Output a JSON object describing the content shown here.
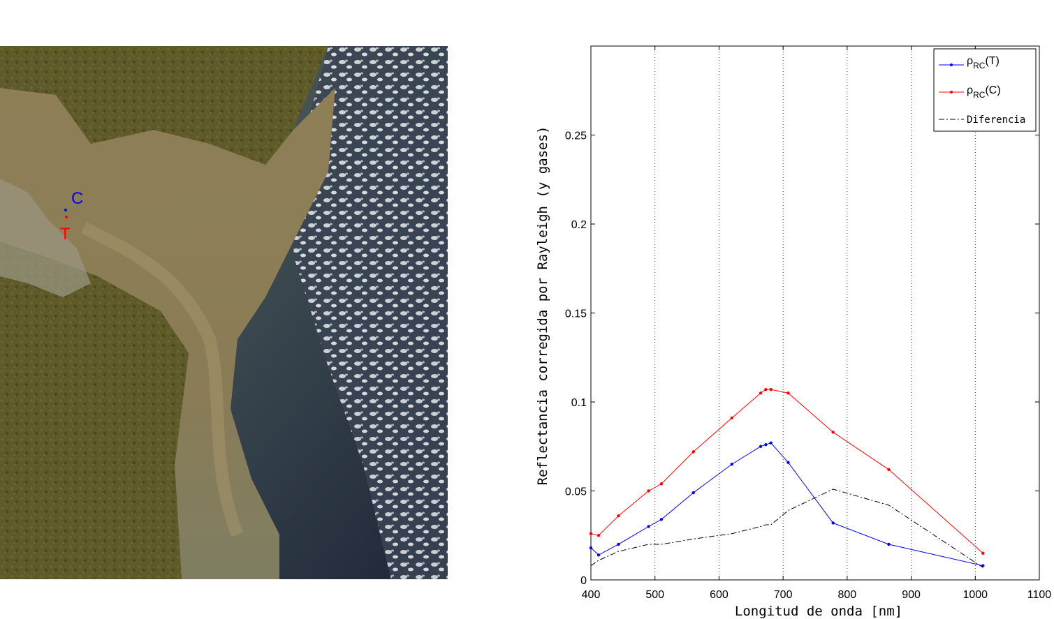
{
  "image_panel": {
    "markers": [
      {
        "label": "C",
        "color": "#0000ff"
      },
      {
        "label": "T",
        "color": "#ff0000"
      }
    ]
  },
  "chart_data": {
    "type": "line",
    "xlabel": "Longitud de onda [nm]",
    "ylabel": "Reflectancia corregida por Rayleigh (y gases)",
    "xlim": [
      400,
      1100
    ],
    "ylim": [
      0,
      0.3
    ],
    "xticks": [
      400,
      500,
      600,
      700,
      800,
      900,
      1000,
      1100
    ],
    "yticks": [
      0,
      0.05,
      0.1,
      0.15,
      0.2,
      0.25
    ],
    "ytick_labels": [
      "0",
      "0.05",
      "0.1",
      "0.15",
      "0.2",
      "0.25"
    ],
    "grid": "vertical dotted",
    "legend_position": "top-right",
    "series": [
      {
        "key": "T",
        "legend_base": "ρ",
        "legend_sub": "RC",
        "legend_suffix": "(T)",
        "color": "#0000ff",
        "dash": "solid",
        "marker": "dot",
        "x": [
          400,
          412,
          443,
          490,
          510,
          560,
          620,
          665,
          673,
          681,
          708,
          778,
          865,
          1012
        ],
        "y": [
          0.018,
          0.014,
          0.02,
          0.03,
          0.034,
          0.049,
          0.065,
          0.075,
          0.076,
          0.077,
          0.066,
          0.032,
          0.02,
          0.008
        ]
      },
      {
        "key": "C",
        "legend_base": "ρ",
        "legend_sub": "RC",
        "legend_suffix": "(C)",
        "color": "#ff0000",
        "dash": "solid",
        "marker": "dot",
        "x": [
          400,
          412,
          443,
          490,
          510,
          560,
          620,
          665,
          673,
          681,
          708,
          778,
          865,
          1012
        ],
        "y": [
          0.026,
          0.025,
          0.036,
          0.05,
          0.054,
          0.072,
          0.091,
          0.105,
          0.107,
          0.107,
          0.105,
          0.083,
          0.062,
          0.015
        ]
      },
      {
        "key": "Diferencia",
        "name": "Diferencia",
        "color": "#000000",
        "dash": "dashdot",
        "marker": "none",
        "x": [
          400,
          412,
          443,
          490,
          510,
          560,
          620,
          665,
          673,
          681,
          708,
          778,
          865,
          1012
        ],
        "y": [
          0.008,
          0.011,
          0.016,
          0.02,
          0.02,
          0.023,
          0.026,
          0.03,
          0.031,
          0.031,
          0.039,
          0.051,
          0.042,
          0.007
        ]
      }
    ]
  }
}
